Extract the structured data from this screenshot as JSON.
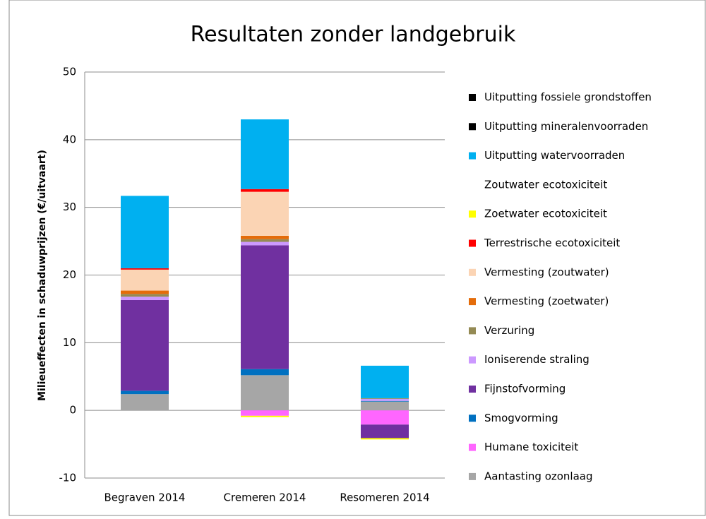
{
  "chart_data": {
    "type": "stacked_bar",
    "title": "Resultaten zonder landgebruik",
    "y_label": "Milieueffecten in schaduwprijzen (€/uitvaart)",
    "categories": [
      "Begraven 2014",
      "Cremeren 2014",
      "Resomeren 2014"
    ],
    "ylim": [
      -10,
      50
    ],
    "yticks": [
      -10,
      0,
      10,
      20,
      30,
      40,
      50
    ],
    "grid": true,
    "legend": "right",
    "series": [
      {
        "name": "Uitputting fossiele grondstoffen",
        "color": "#000000",
        "values": [
          0,
          0,
          0
        ]
      },
      {
        "name": "Uitputting mineralenvoorraden",
        "color": "#000000",
        "values": [
          0,
          0,
          0
        ]
      },
      {
        "name": "Uitputting watervoorraden",
        "color": "#00b0f0",
        "values": [
          10.7,
          10.3,
          4.8
        ]
      },
      {
        "name": "Zoutwater ecotoxiciteit",
        "color": "#ffffff",
        "values": [
          0,
          0,
          0
        ]
      },
      {
        "name": "Zoetwater ecotoxiciteit",
        "color": "#ffff00",
        "values": [
          0,
          -0.2,
          -0.2
        ]
      },
      {
        "name": "Terrestrische ecotoxiciteit",
        "color": "#ff0000",
        "values": [
          0.2,
          0.4,
          0
        ]
      },
      {
        "name": "Vermesting (zoutwater)",
        "color": "#fbd4b4",
        "values": [
          3.1,
          6.5,
          0
        ]
      },
      {
        "name": "Vermesting (zoetwater)",
        "color": "#e46c0a",
        "values": [
          0.5,
          0.5,
          0
        ]
      },
      {
        "name": "Verzuring",
        "color": "#948a54",
        "values": [
          0.4,
          0.4,
          0.1
        ]
      },
      {
        "name": "Ioniserende straling",
        "color": "#cc99ff",
        "values": [
          0.5,
          0.5,
          0.3
        ]
      },
      {
        "name": "Fijnstofvorming",
        "color": "#7030a0",
        "values": [
          13.4,
          18.3,
          -2.0
        ]
      },
      {
        "name": "Smogvorming",
        "color": "#0070c0",
        "values": [
          0.5,
          0.9,
          0.1
        ]
      },
      {
        "name": "Humane toxiciteit",
        "color": "#ff66ff",
        "values": [
          0,
          -0.8,
          -2.1
        ]
      },
      {
        "name": "Aantasting ozonlaag",
        "color": "#a6a6a6",
        "values": [
          2.4,
          5.2,
          1.3
        ]
      }
    ]
  }
}
